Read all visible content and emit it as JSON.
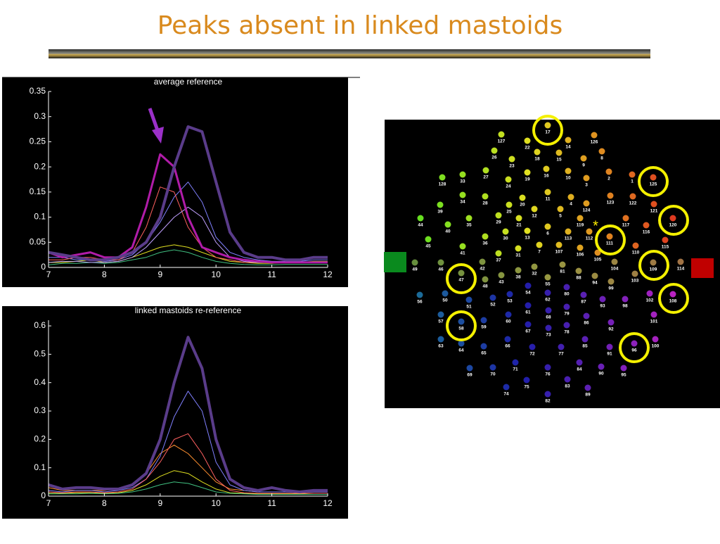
{
  "title": "Peaks absent in linked mastoids",
  "chart_data": [
    {
      "type": "line",
      "title": "average reference",
      "x": [
        7,
        7.25,
        7.5,
        7.75,
        8,
        8.25,
        8.5,
        8.75,
        9,
        9.25,
        9.5,
        9.75,
        10,
        10.25,
        10.5,
        10.75,
        11,
        11.25,
        11.5,
        11.75,
        12
      ],
      "xlim": [
        7,
        12
      ],
      "xticks": [
        7,
        8,
        9,
        10,
        11,
        12
      ],
      "ylim": [
        0,
        0.35
      ],
      "yticks": [
        0,
        0.05,
        0.1,
        0.15,
        0.2,
        0.25,
        0.3,
        0.35
      ],
      "series": [
        {
          "color": "#e0e020",
          "linewidth": 1,
          "values": [
            0.01,
            0.01,
            0.012,
            0.015,
            0.01,
            0.012,
            0.02,
            0.03,
            0.04,
            0.045,
            0.04,
            0.03,
            0.02,
            0.012,
            0.01,
            0.008,
            0.008,
            0.01,
            0.01,
            0.012,
            0.012
          ]
        },
        {
          "color": "#8080ff",
          "linewidth": 1,
          "values": [
            0.02,
            0.02,
            0.015,
            0.015,
            0.012,
            0.015,
            0.025,
            0.05,
            0.09,
            0.14,
            0.17,
            0.13,
            0.06,
            0.03,
            0.02,
            0.015,
            0.012,
            0.012,
            0.012,
            0.015,
            0.015
          ]
        },
        {
          "color": "#ff6060",
          "linewidth": 1,
          "values": [
            0.015,
            0.015,
            0.02,
            0.02,
            0.015,
            0.015,
            0.03,
            0.08,
            0.16,
            0.15,
            0.08,
            0.04,
            0.02,
            0.015,
            0.01,
            0.01,
            0.01,
            0.01,
            0.01,
            0.01,
            0.01
          ]
        },
        {
          "color": "#40c080",
          "linewidth": 1,
          "values": [
            0.005,
            0.008,
            0.008,
            0.01,
            0.008,
            0.01,
            0.015,
            0.02,
            0.03,
            0.035,
            0.03,
            0.02,
            0.012,
            0.008,
            0.006,
            0.005,
            0.005,
            0.006,
            0.006,
            0.006,
            0.006
          ]
        },
        {
          "color": "#c0a0ff",
          "linewidth": 1,
          "values": [
            0.01,
            0.012,
            0.012,
            0.01,
            0.01,
            0.012,
            0.02,
            0.04,
            0.07,
            0.1,
            0.12,
            0.1,
            0.05,
            0.02,
            0.012,
            0.01,
            0.01,
            0.01,
            0.01,
            0.01,
            0.01
          ]
        },
        {
          "color": "#b01ca8",
          "linewidth": 3,
          "values": [
            0.03,
            0.02,
            0.025,
            0.03,
            0.02,
            0.02,
            0.04,
            0.12,
            0.225,
            0.2,
            0.1,
            0.04,
            0.03,
            0.02,
            0.015,
            0.012,
            0.01,
            0.01,
            0.01,
            0.01,
            0.01
          ]
        },
        {
          "color": "#5a3c8a",
          "linewidth": 4,
          "values": [
            0.03,
            0.025,
            0.02,
            0.015,
            0.015,
            0.02,
            0.03,
            0.05,
            0.1,
            0.2,
            0.28,
            0.27,
            0.17,
            0.07,
            0.03,
            0.02,
            0.02,
            0.015,
            0.015,
            0.02,
            0.02
          ]
        }
      ]
    },
    {
      "type": "line",
      "title": "linked mastoids re-reference",
      "x": [
        7,
        7.25,
        7.5,
        7.75,
        8,
        8.25,
        8.5,
        8.75,
        9,
        9.25,
        9.5,
        9.75,
        10,
        10.25,
        10.5,
        10.75,
        11,
        11.25,
        11.5,
        11.75,
        12
      ],
      "xlim": [
        7,
        12
      ],
      "xticks": [
        7,
        8,
        9,
        10,
        11,
        12
      ],
      "ylim": [
        0,
        0.62
      ],
      "yticks": [
        0,
        0.1,
        0.2,
        0.3,
        0.4,
        0.5,
        0.6
      ],
      "series": [
        {
          "color": "#ff9030",
          "linewidth": 1,
          "values": [
            0.03,
            0.02,
            0.02,
            0.02,
            0.02,
            0.025,
            0.04,
            0.08,
            0.15,
            0.18,
            0.15,
            0.1,
            0.05,
            0.025,
            0.02,
            0.015,
            0.015,
            0.015,
            0.015,
            0.015,
            0.015
          ]
        },
        {
          "color": "#8080ff",
          "linewidth": 1,
          "values": [
            0.02,
            0.015,
            0.02,
            0.02,
            0.015,
            0.02,
            0.03,
            0.06,
            0.14,
            0.28,
            0.37,
            0.3,
            0.12,
            0.04,
            0.02,
            0.015,
            0.015,
            0.015,
            0.012,
            0.015,
            0.015
          ]
        },
        {
          "color": "#e0e020",
          "linewidth": 1,
          "values": [
            0.01,
            0.01,
            0.012,
            0.012,
            0.01,
            0.012,
            0.02,
            0.04,
            0.07,
            0.09,
            0.08,
            0.05,
            0.025,
            0.012,
            0.01,
            0.008,
            0.008,
            0.008,
            0.008,
            0.01,
            0.01
          ]
        },
        {
          "color": "#ff6060",
          "linewidth": 1,
          "values": [
            0.015,
            0.012,
            0.015,
            0.015,
            0.012,
            0.015,
            0.025,
            0.06,
            0.12,
            0.2,
            0.22,
            0.15,
            0.06,
            0.02,
            0.012,
            0.01,
            0.01,
            0.01,
            0.01,
            0.01,
            0.01
          ]
        },
        {
          "color": "#40c080",
          "linewidth": 1,
          "values": [
            0.008,
            0.008,
            0.008,
            0.01,
            0.008,
            0.01,
            0.015,
            0.025,
            0.04,
            0.05,
            0.045,
            0.03,
            0.015,
            0.01,
            0.008,
            0.006,
            0.006,
            0.006,
            0.006,
            0.006,
            0.006
          ]
        },
        {
          "color": "#5a3c8a",
          "linewidth": 4,
          "values": [
            0.04,
            0.025,
            0.03,
            0.03,
            0.025,
            0.025,
            0.04,
            0.08,
            0.2,
            0.4,
            0.56,
            0.45,
            0.2,
            0.06,
            0.03,
            0.02,
            0.03,
            0.02,
            0.015,
            0.02,
            0.02
          ]
        }
      ]
    }
  ],
  "map": {
    "marker": "*",
    "labels": [
      "17",
      "127",
      "22",
      "14",
      "126",
      "26",
      "23",
      "18",
      "15",
      "9",
      "8",
      "33",
      "128",
      "27",
      "24",
      "19",
      "16",
      "10",
      "3",
      "2",
      "1",
      "125",
      "34",
      "28",
      "20",
      "11",
      "4",
      "124",
      "123",
      "122",
      "121",
      "39",
      "25",
      "12",
      "5",
      "119",
      "117",
      "120",
      "44",
      "40",
      "35",
      "29",
      "21",
      "45",
      "36",
      "30",
      "31",
      "13",
      "6",
      "113",
      "112",
      "111",
      "116",
      "115",
      "41",
      "37",
      "7",
      "107",
      "106",
      "105",
      "110",
      "49",
      "46",
      "42",
      "32",
      "38",
      "81",
      "104",
      "109",
      "114",
      "47",
      "48",
      "43",
      "55",
      "88",
      "94",
      "99",
      "103",
      "56",
      "50",
      "51",
      "52",
      "53",
      "54",
      "62",
      "80",
      "87",
      "93",
      "98",
      "102",
      "108",
      "57",
      "58",
      "59",
      "60",
      "61",
      "68",
      "79",
      "86",
      "92",
      "101",
      "67",
      "73",
      "78",
      "63",
      "64",
      "65",
      "66",
      "72",
      "77",
      "85",
      "91",
      "96",
      "100",
      "69",
      "70",
      "71",
      "76",
      "84",
      "90",
      "95",
      "74",
      "75",
      "83",
      "89",
      "82"
    ]
  }
}
